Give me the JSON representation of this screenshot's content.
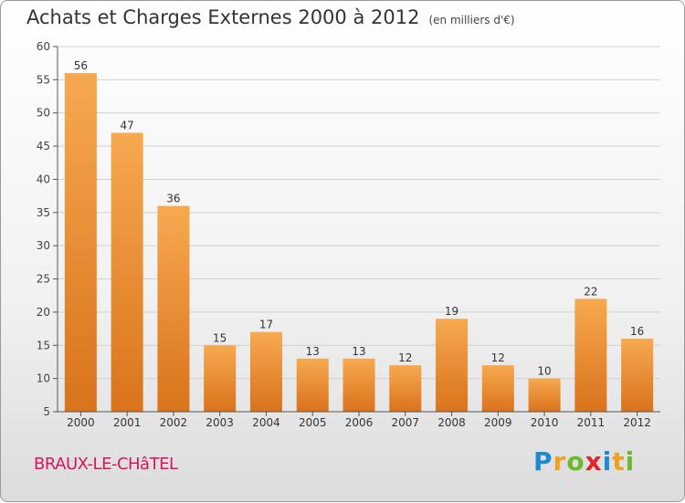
{
  "header": {
    "title": "Achats et Charges Externes 2000 à 2012",
    "subtitle": "(en milliers d'€)"
  },
  "footer": {
    "commune": "BRAUX-LE-CHâTEL",
    "logo_letters": [
      "P",
      "r",
      "o",
      "x",
      "i",
      "t",
      "i"
    ],
    "logo_colors": [
      "#1e8bd0",
      "#f0a020",
      "#6dbb2b",
      "#e0262b",
      "#1e8bd0",
      "#f0a020",
      "#6dbb2b"
    ]
  },
  "colors": {
    "bar_light": "#f7a950",
    "bar_dark": "#d9731c",
    "grid": "#d0d0d0",
    "axis": "#555555"
  },
  "chart_data": {
    "type": "bar",
    "title": "Achats et Charges Externes 2000 à 2012",
    "subtitle": "(en milliers d'€)",
    "categories": [
      "2000",
      "2001",
      "2002",
      "2003",
      "2004",
      "2005",
      "2006",
      "2007",
      "2008",
      "2009",
      "2010",
      "2011",
      "2012"
    ],
    "values": [
      56,
      47,
      36,
      15,
      17,
      13,
      13,
      12,
      19,
      12,
      10,
      22,
      16
    ],
    "ylim": [
      5,
      60
    ],
    "yticks": [
      5,
      10,
      15,
      20,
      25,
      30,
      35,
      40,
      45,
      50,
      55,
      60
    ],
    "grid": true,
    "data_labels": true
  }
}
